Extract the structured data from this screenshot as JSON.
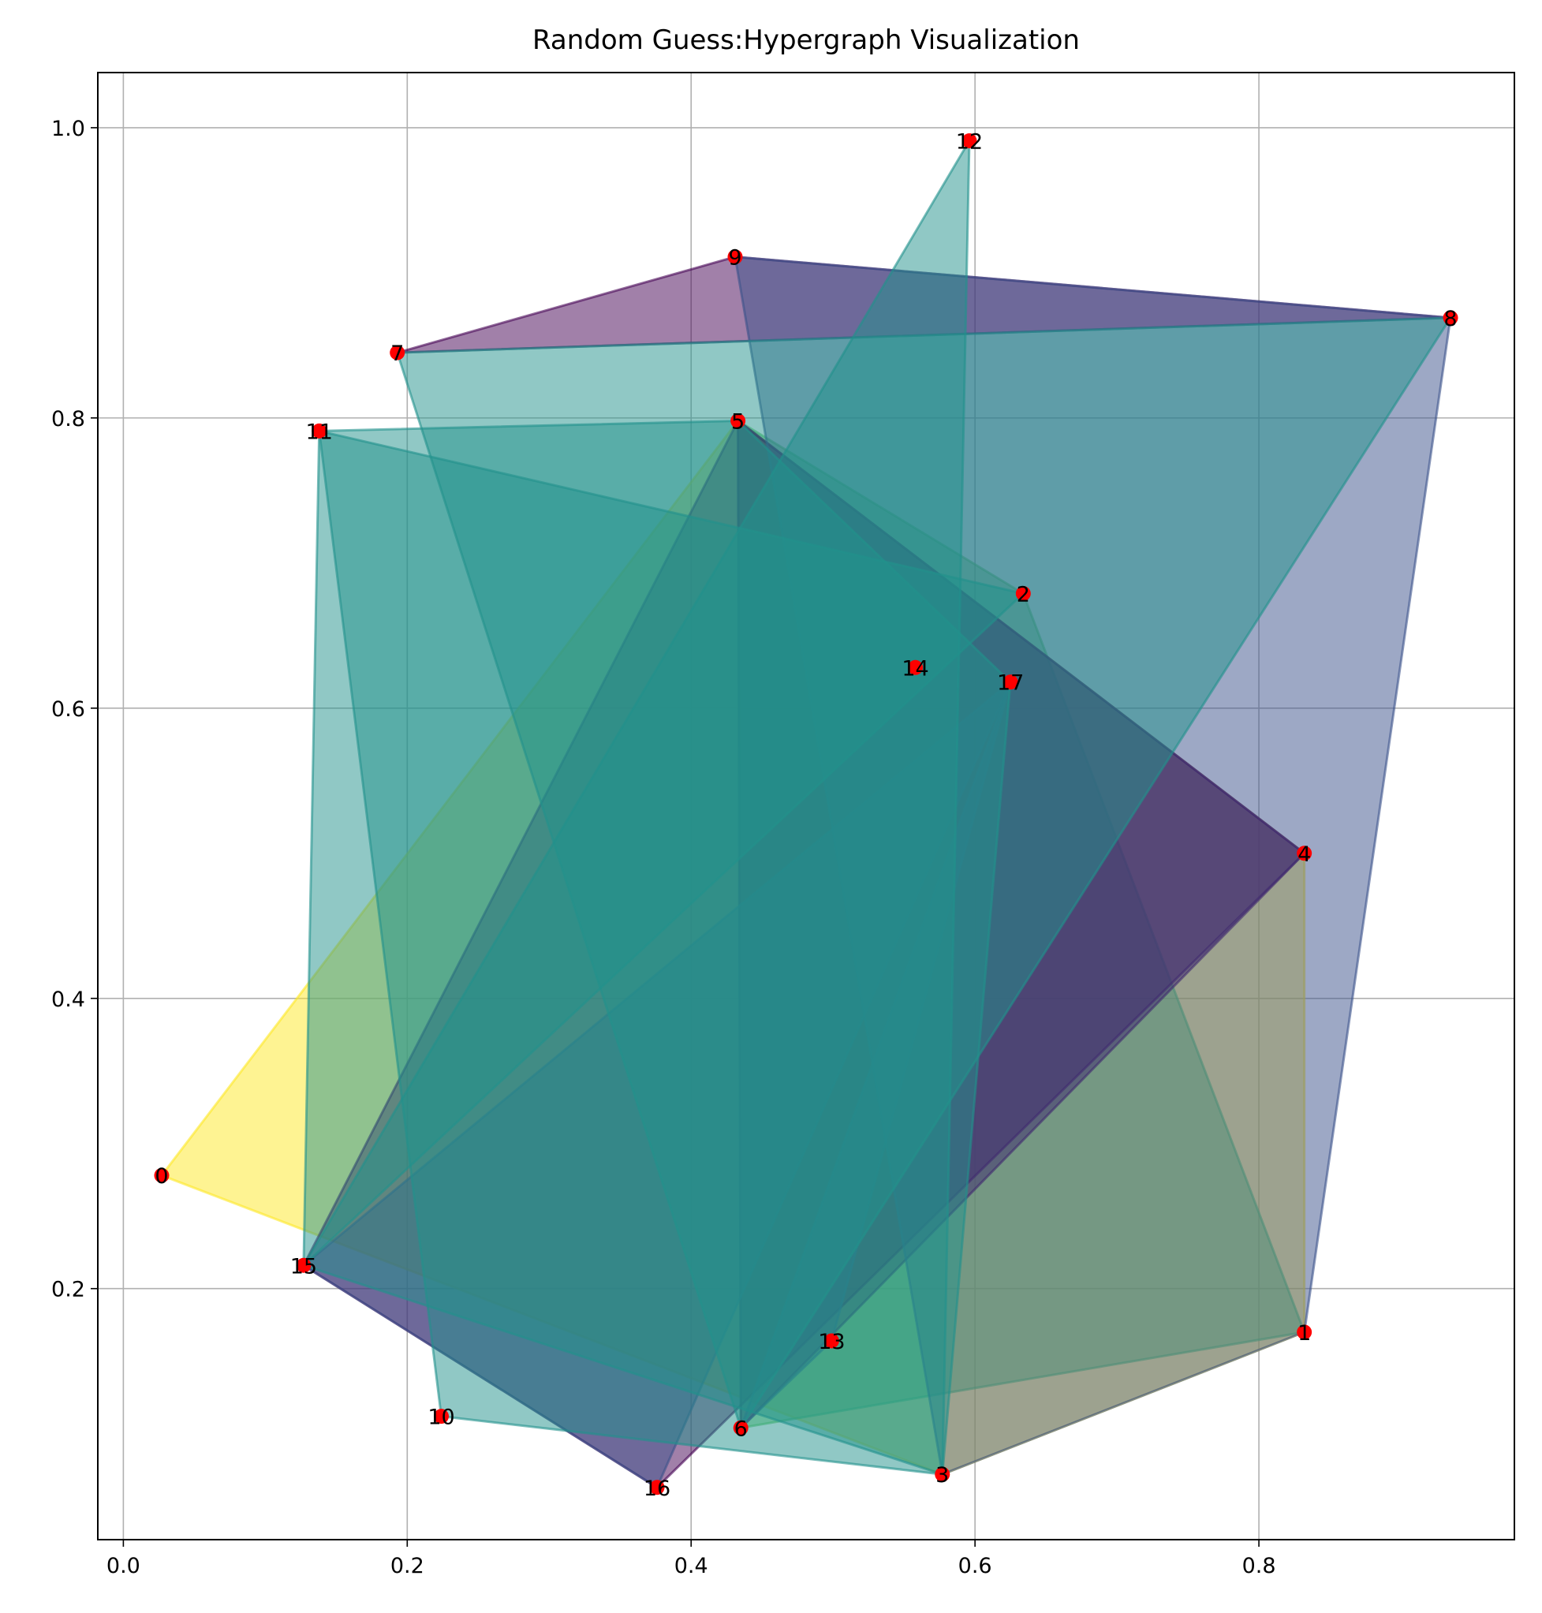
{
  "chart_data": {
    "type": "scatter",
    "title": "Random Guess:Hypergraph Visualization",
    "xlabel": "",
    "ylabel": "",
    "xlim": [
      -0.018,
      0.98
    ],
    "ylim": [
      0.027,
      1.038
    ],
    "xticks": [
      0.0,
      0.2,
      0.4,
      0.6,
      0.8
    ],
    "yticks": [
      0.2,
      0.4,
      0.6,
      0.8,
      1.0
    ],
    "xtick_labels": [
      "0.0",
      "0.2",
      "0.4",
      "0.6",
      "0.8"
    ],
    "ytick_labels": [
      "0.2",
      "0.4",
      "0.6",
      "0.8",
      "1.0"
    ],
    "grid": true,
    "point_color": "#ff0000",
    "nodes": [
      {
        "id": "0",
        "x": 0.027,
        "y": 0.278
      },
      {
        "id": "1",
        "x": 0.832,
        "y": 0.17
      },
      {
        "id": "2",
        "x": 0.634,
        "y": 0.679
      },
      {
        "id": "3",
        "x": 0.577,
        "y": 0.072
      },
      {
        "id": "4",
        "x": 0.832,
        "y": 0.5
      },
      {
        "id": "5",
        "x": 0.433,
        "y": 0.798
      },
      {
        "id": "6",
        "x": 0.435,
        "y": 0.104
      },
      {
        "id": "7",
        "x": 0.193,
        "y": 0.845
      },
      {
        "id": "8",
        "x": 0.935,
        "y": 0.869
      },
      {
        "id": "9",
        "x": 0.431,
        "y": 0.911
      },
      {
        "id": "10",
        "x": 0.224,
        "y": 0.112
      },
      {
        "id": "11",
        "x": 0.138,
        "y": 0.791
      },
      {
        "id": "12",
        "x": 0.596,
        "y": 0.991
      },
      {
        "id": "13",
        "x": 0.499,
        "y": 0.164
      },
      {
        "id": "14",
        "x": 0.558,
        "y": 0.628
      },
      {
        "id": "15",
        "x": 0.127,
        "y": 0.216
      },
      {
        "id": "16",
        "x": 0.376,
        "y": 0.063
      },
      {
        "id": "17",
        "x": 0.625,
        "y": 0.618
      }
    ],
    "hyperedges": [
      {
        "members": [
          "0",
          "5",
          "4",
          "3",
          "1"
        ],
        "color": "#fde725"
      },
      {
        "members": [
          "5",
          "6",
          "1",
          "2"
        ],
        "color": "#5ec962"
      },
      {
        "members": [
          "5",
          "4",
          "6"
        ],
        "color": "#440154"
      },
      {
        "members": [
          "5",
          "4",
          "16",
          "15"
        ],
        "color": "#440154"
      },
      {
        "members": [
          "15",
          "17",
          "16"
        ],
        "color": "#3b528b"
      },
      {
        "members": [
          "17",
          "6",
          "13"
        ],
        "color": "#3b528b"
      },
      {
        "members": [
          "7",
          "9",
          "8"
        ],
        "color": "#440154"
      },
      {
        "members": [
          "9",
          "8",
          "1",
          "3"
        ],
        "color": "#3b528b"
      },
      {
        "members": [
          "7",
          "8",
          "2",
          "6"
        ],
        "color": "#21918c"
      },
      {
        "members": [
          "11",
          "5",
          "17",
          "3",
          "10"
        ],
        "color": "#21918c"
      },
      {
        "members": [
          "11",
          "2",
          "14",
          "15"
        ],
        "color": "#21918c"
      },
      {
        "members": [
          "12",
          "13",
          "3",
          "15"
        ],
        "color": "#21918c"
      }
    ],
    "hyperedge_opacity": 0.5
  }
}
